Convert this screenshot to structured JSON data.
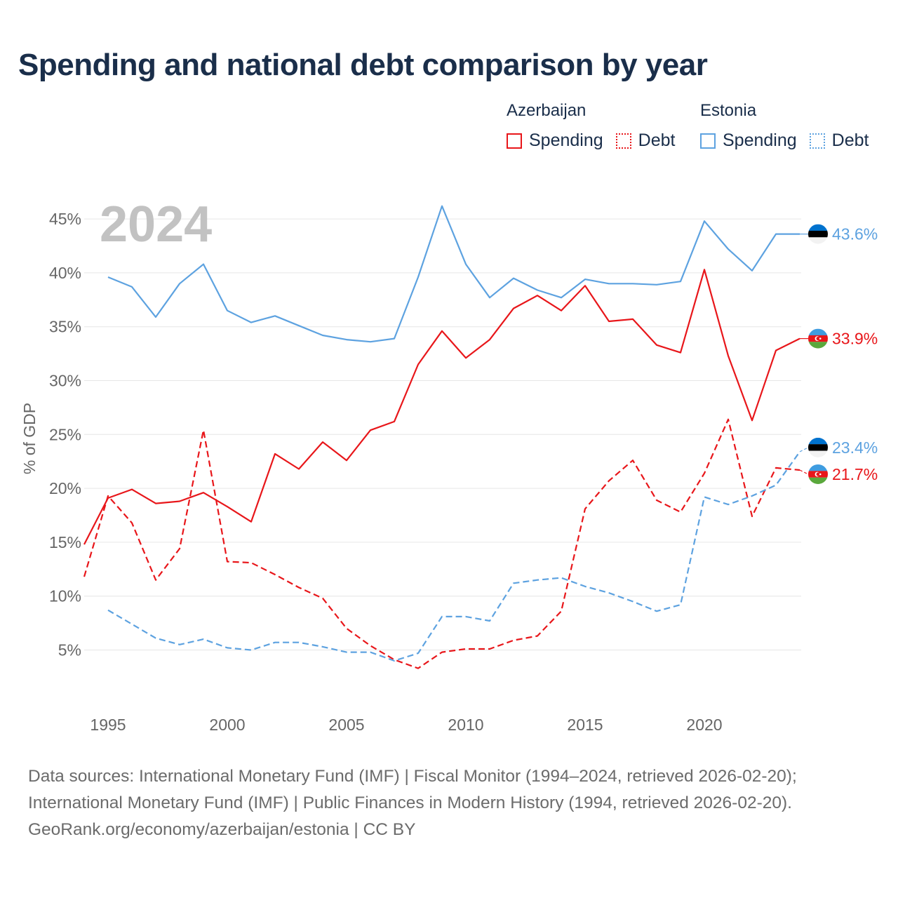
{
  "title": "Spending and national debt comparison by year",
  "year_label": "2024",
  "legend": [
    {
      "name": "Azerbaijan",
      "color": "#e8161a",
      "items": [
        {
          "label": "Spending",
          "style": "solid"
        },
        {
          "label": "Debt",
          "style": "dotted"
        }
      ]
    },
    {
      "name": "Estonia",
      "color": "#5da2e0",
      "items": [
        {
          "label": "Spending",
          "style": "solid"
        },
        {
          "label": "Debt",
          "style": "dotted"
        }
      ]
    }
  ],
  "footer": {
    "line1": "Data sources: International Monetary Fund (IMF) | Fiscal Monitor (1994–2024, retrieved 2026-02-20);",
    "line2": "International Monetary Fund (IMF) | Public Finances in Modern History (1994, retrieved 2026-02-20).",
    "line3": "GeoRank.org/economy/azerbaijan/estonia | CC BY"
  },
  "chart_data": {
    "type": "line",
    "title": "Spending and national debt comparison by year",
    "xlabel": "",
    "ylabel": "% of GDP",
    "xlim": [
      1994,
      2024
    ],
    "ylim": [
      0,
      47.5
    ],
    "xticks": [
      1995,
      2000,
      2005,
      2010,
      2015,
      2020
    ],
    "yticks": [
      5,
      10,
      15,
      20,
      25,
      30,
      35,
      40,
      45
    ],
    "ytick_labels": [
      "5%",
      "10%",
      "15%",
      "20%",
      "25%",
      "30%",
      "35%",
      "40%",
      "45%"
    ],
    "grid": true,
    "series": [
      {
        "name": "Azerbaijan Spending",
        "country": "Azerbaijan",
        "metric": "Spending",
        "color": "#e8161a",
        "dash": "solid",
        "end_label": "33.9%",
        "flag": "azerbaijan",
        "x": [
          1994,
          1995,
          1996,
          1997,
          1998,
          1999,
          2000,
          2001,
          2002,
          2003,
          2004,
          2005,
          2006,
          2007,
          2008,
          2009,
          2010,
          2011,
          2012,
          2013,
          2014,
          2015,
          2016,
          2017,
          2018,
          2019,
          2020,
          2021,
          2022,
          2023,
          2024
        ],
        "values": [
          14.8,
          19.1,
          19.9,
          18.6,
          18.8,
          19.6,
          18.3,
          16.9,
          23.2,
          21.8,
          24.3,
          22.6,
          25.4,
          26.2,
          31.5,
          34.6,
          32.1,
          33.8,
          36.7,
          37.9,
          36.5,
          38.8,
          35.5,
          35.7,
          33.3,
          32.6,
          40.3,
          32.3,
          26.3,
          32.8,
          33.9
        ]
      },
      {
        "name": "Azerbaijan Debt",
        "country": "Azerbaijan",
        "metric": "Debt",
        "color": "#e8161a",
        "dash": "dashed",
        "end_label": "21.7%",
        "flag": "azerbaijan",
        "x": [
          1994,
          1995,
          1996,
          1997,
          1998,
          1999,
          2000,
          2001,
          2002,
          2003,
          2004,
          2005,
          2006,
          2007,
          2008,
          2009,
          2010,
          2011,
          2012,
          2013,
          2014,
          2015,
          2016,
          2017,
          2018,
          2019,
          2020,
          2021,
          2022,
          2023,
          2024
        ],
        "values": [
          11.8,
          19.3,
          16.8,
          11.5,
          14.4,
          25.4,
          13.2,
          13.1,
          12.0,
          10.8,
          9.8,
          7.0,
          5.4,
          4.1,
          3.3,
          4.8,
          5.1,
          5.1,
          5.9,
          6.3,
          8.6,
          18.1,
          20.7,
          22.6,
          18.9,
          17.8,
          21.4,
          26.4,
          17.4,
          21.9,
          21.7
        ]
      },
      {
        "name": "Estonia Spending",
        "country": "Estonia",
        "metric": "Spending",
        "color": "#5da2e0",
        "dash": "solid",
        "end_label": "43.6%",
        "flag": "estonia",
        "x": [
          1995,
          1996,
          1997,
          1998,
          1999,
          2000,
          2001,
          2002,
          2003,
          2004,
          2005,
          2006,
          2007,
          2008,
          2009,
          2010,
          2011,
          2012,
          2013,
          2014,
          2015,
          2016,
          2017,
          2018,
          2019,
          2020,
          2021,
          2022,
          2023,
          2024
        ],
        "values": [
          39.6,
          38.7,
          35.9,
          39.0,
          40.8,
          36.5,
          35.4,
          36.0,
          35.1,
          34.2,
          33.8,
          33.6,
          33.9,
          39.6,
          46.2,
          40.8,
          37.7,
          39.5,
          38.4,
          37.7,
          39.4,
          39.0,
          39.0,
          38.9,
          39.2,
          44.8,
          42.2,
          40.2,
          43.6,
          43.6
        ]
      },
      {
        "name": "Estonia Debt",
        "country": "Estonia",
        "metric": "Debt",
        "color": "#5da2e0",
        "dash": "dashed",
        "end_label": "23.4%",
        "flag": "estonia",
        "x": [
          1995,
          1996,
          1997,
          1998,
          1999,
          2000,
          2001,
          2002,
          2003,
          2004,
          2005,
          2006,
          2007,
          2008,
          2009,
          2010,
          2011,
          2012,
          2013,
          2014,
          2015,
          2016,
          2017,
          2018,
          2019,
          2020,
          2021,
          2022,
          2023,
          2024
        ],
        "values": [
          8.7,
          7.4,
          6.1,
          5.5,
          6.0,
          5.2,
          5.0,
          5.7,
          5.7,
          5.3,
          4.8,
          4.8,
          4.0,
          4.7,
          8.1,
          8.1,
          7.7,
          11.2,
          11.5,
          11.7,
          10.9,
          10.3,
          9.5,
          8.6,
          9.2,
          19.2,
          18.5,
          19.3,
          20.3,
          23.4
        ]
      }
    ]
  }
}
